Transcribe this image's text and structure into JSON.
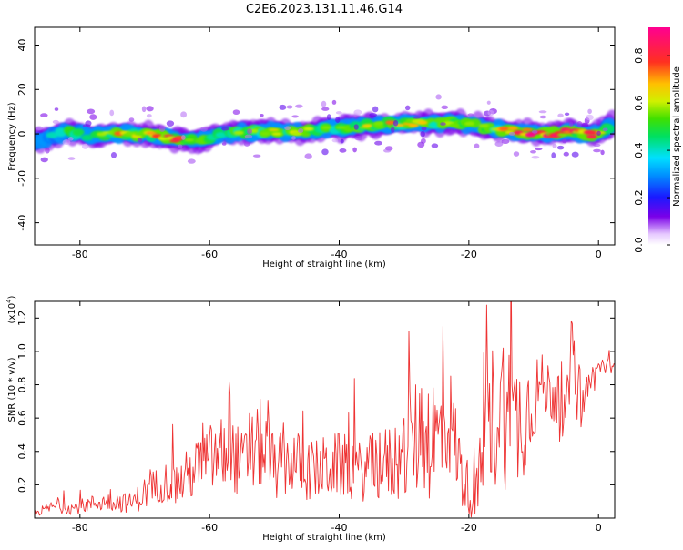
{
  "title": "C2E6.2023.131.11.46.G14",
  "chart_data": [
    {
      "type": "heatmap",
      "xlabel": "Height of straight line (km)",
      "ylabel": "Frequency (Hz)",
      "xlim": [
        -87,
        2.5
      ],
      "ylim": [
        -50,
        48
      ],
      "xticks": [
        "-80",
        "-60",
        "-40",
        "-20",
        "0"
      ],
      "yticks": [
        "40",
        "20",
        "0",
        "-20",
        "-40"
      ],
      "colorbar": {
        "label": "Normalized spectral amplitude",
        "range": [
          0,
          0.92
        ],
        "ticks": [
          "0.0",
          "0.2",
          "0.4",
          "0.6",
          "0.8"
        ]
      },
      "ridge": {
        "x": [
          -86,
          -82,
          -78,
          -74,
          -70,
          -66,
          -62,
          -58,
          -54,
          -50,
          -46,
          -42,
          -38,
          -34,
          -30,
          -26,
          -22,
          -19,
          -16,
          -12,
          -8,
          -4,
          -1,
          1,
          2.5
        ],
        "freq_center": [
          -3,
          1,
          -1,
          0,
          0,
          -2,
          -3,
          0,
          1,
          1,
          1,
          2,
          3,
          4,
          5,
          5,
          5,
          4,
          2,
          1,
          0,
          1,
          0,
          2,
          5
        ],
        "peak_amplitude": [
          0.3,
          0.5,
          0.45,
          0.7,
          0.65,
          0.85,
          0.6,
          0.5,
          0.55,
          0.6,
          0.6,
          0.55,
          0.6,
          0.7,
          0.65,
          0.6,
          0.75,
          0.5,
          0.55,
          0.9,
          0.92,
          0.8,
          0.85,
          0.5,
          0.3
        ]
      }
    },
    {
      "type": "line",
      "xlabel": "Height of straight line (km)",
      "ylabel": "SNR (10 * v/v)",
      "yscale_label": "(x10",
      "yscale_exp": "4",
      "yscale_close": ")",
      "xlim": [
        -87,
        2.5
      ],
      "ylim": [
        0,
        1.3
      ],
      "xticks": [
        "-80",
        "-60",
        "-40",
        "-20",
        "0"
      ],
      "yticks": [
        "0.2",
        "0.4",
        "0.6",
        "0.8",
        "1.0",
        "1.2"
      ],
      "series": [
        {
          "color": "#ee3333",
          "x": [
            -87,
            -84,
            -81,
            -78,
            -75,
            -72,
            -70,
            -67,
            -65,
            -62,
            -60,
            -57,
            -55,
            -52,
            -50,
            -47,
            -45,
            -42,
            -40,
            -37,
            -35,
            -32,
            -30,
            -27,
            -25,
            -23,
            -21,
            -19,
            -17,
            -15,
            -13,
            -11,
            -9,
            -7,
            -5,
            -4,
            -3,
            -2,
            0,
            1,
            2.5
          ],
          "y": [
            0.03,
            0.07,
            0.06,
            0.09,
            0.1,
            0.09,
            0.15,
            0.22,
            0.2,
            0.3,
            0.35,
            0.4,
            0.32,
            0.45,
            0.3,
            0.35,
            0.28,
            0.3,
            0.32,
            0.28,
            0.3,
            0.33,
            0.38,
            0.55,
            0.45,
            0.6,
            0.25,
            0.1,
            0.55,
            0.7,
            0.55,
            0.65,
            0.8,
            0.75,
            0.55,
            1.1,
            0.6,
            0.75,
            0.9,
            0.92,
            0.88
          ],
          "spike_amplitude": [
            0.02,
            0.04,
            0.04,
            0.05,
            0.06,
            0.06,
            0.1,
            0.12,
            0.14,
            0.18,
            0.22,
            0.25,
            0.2,
            0.28,
            0.2,
            0.2,
            0.18,
            0.2,
            0.2,
            0.18,
            0.2,
            0.24,
            0.3,
            0.4,
            0.42,
            0.35,
            0.2,
            0.12,
            0.45,
            0.5,
            0.45,
            0.35,
            0.2,
            0.18,
            0.2,
            0.2,
            0.15,
            0.12,
            0.08,
            0.06,
            0.05
          ]
        }
      ]
    }
  ]
}
